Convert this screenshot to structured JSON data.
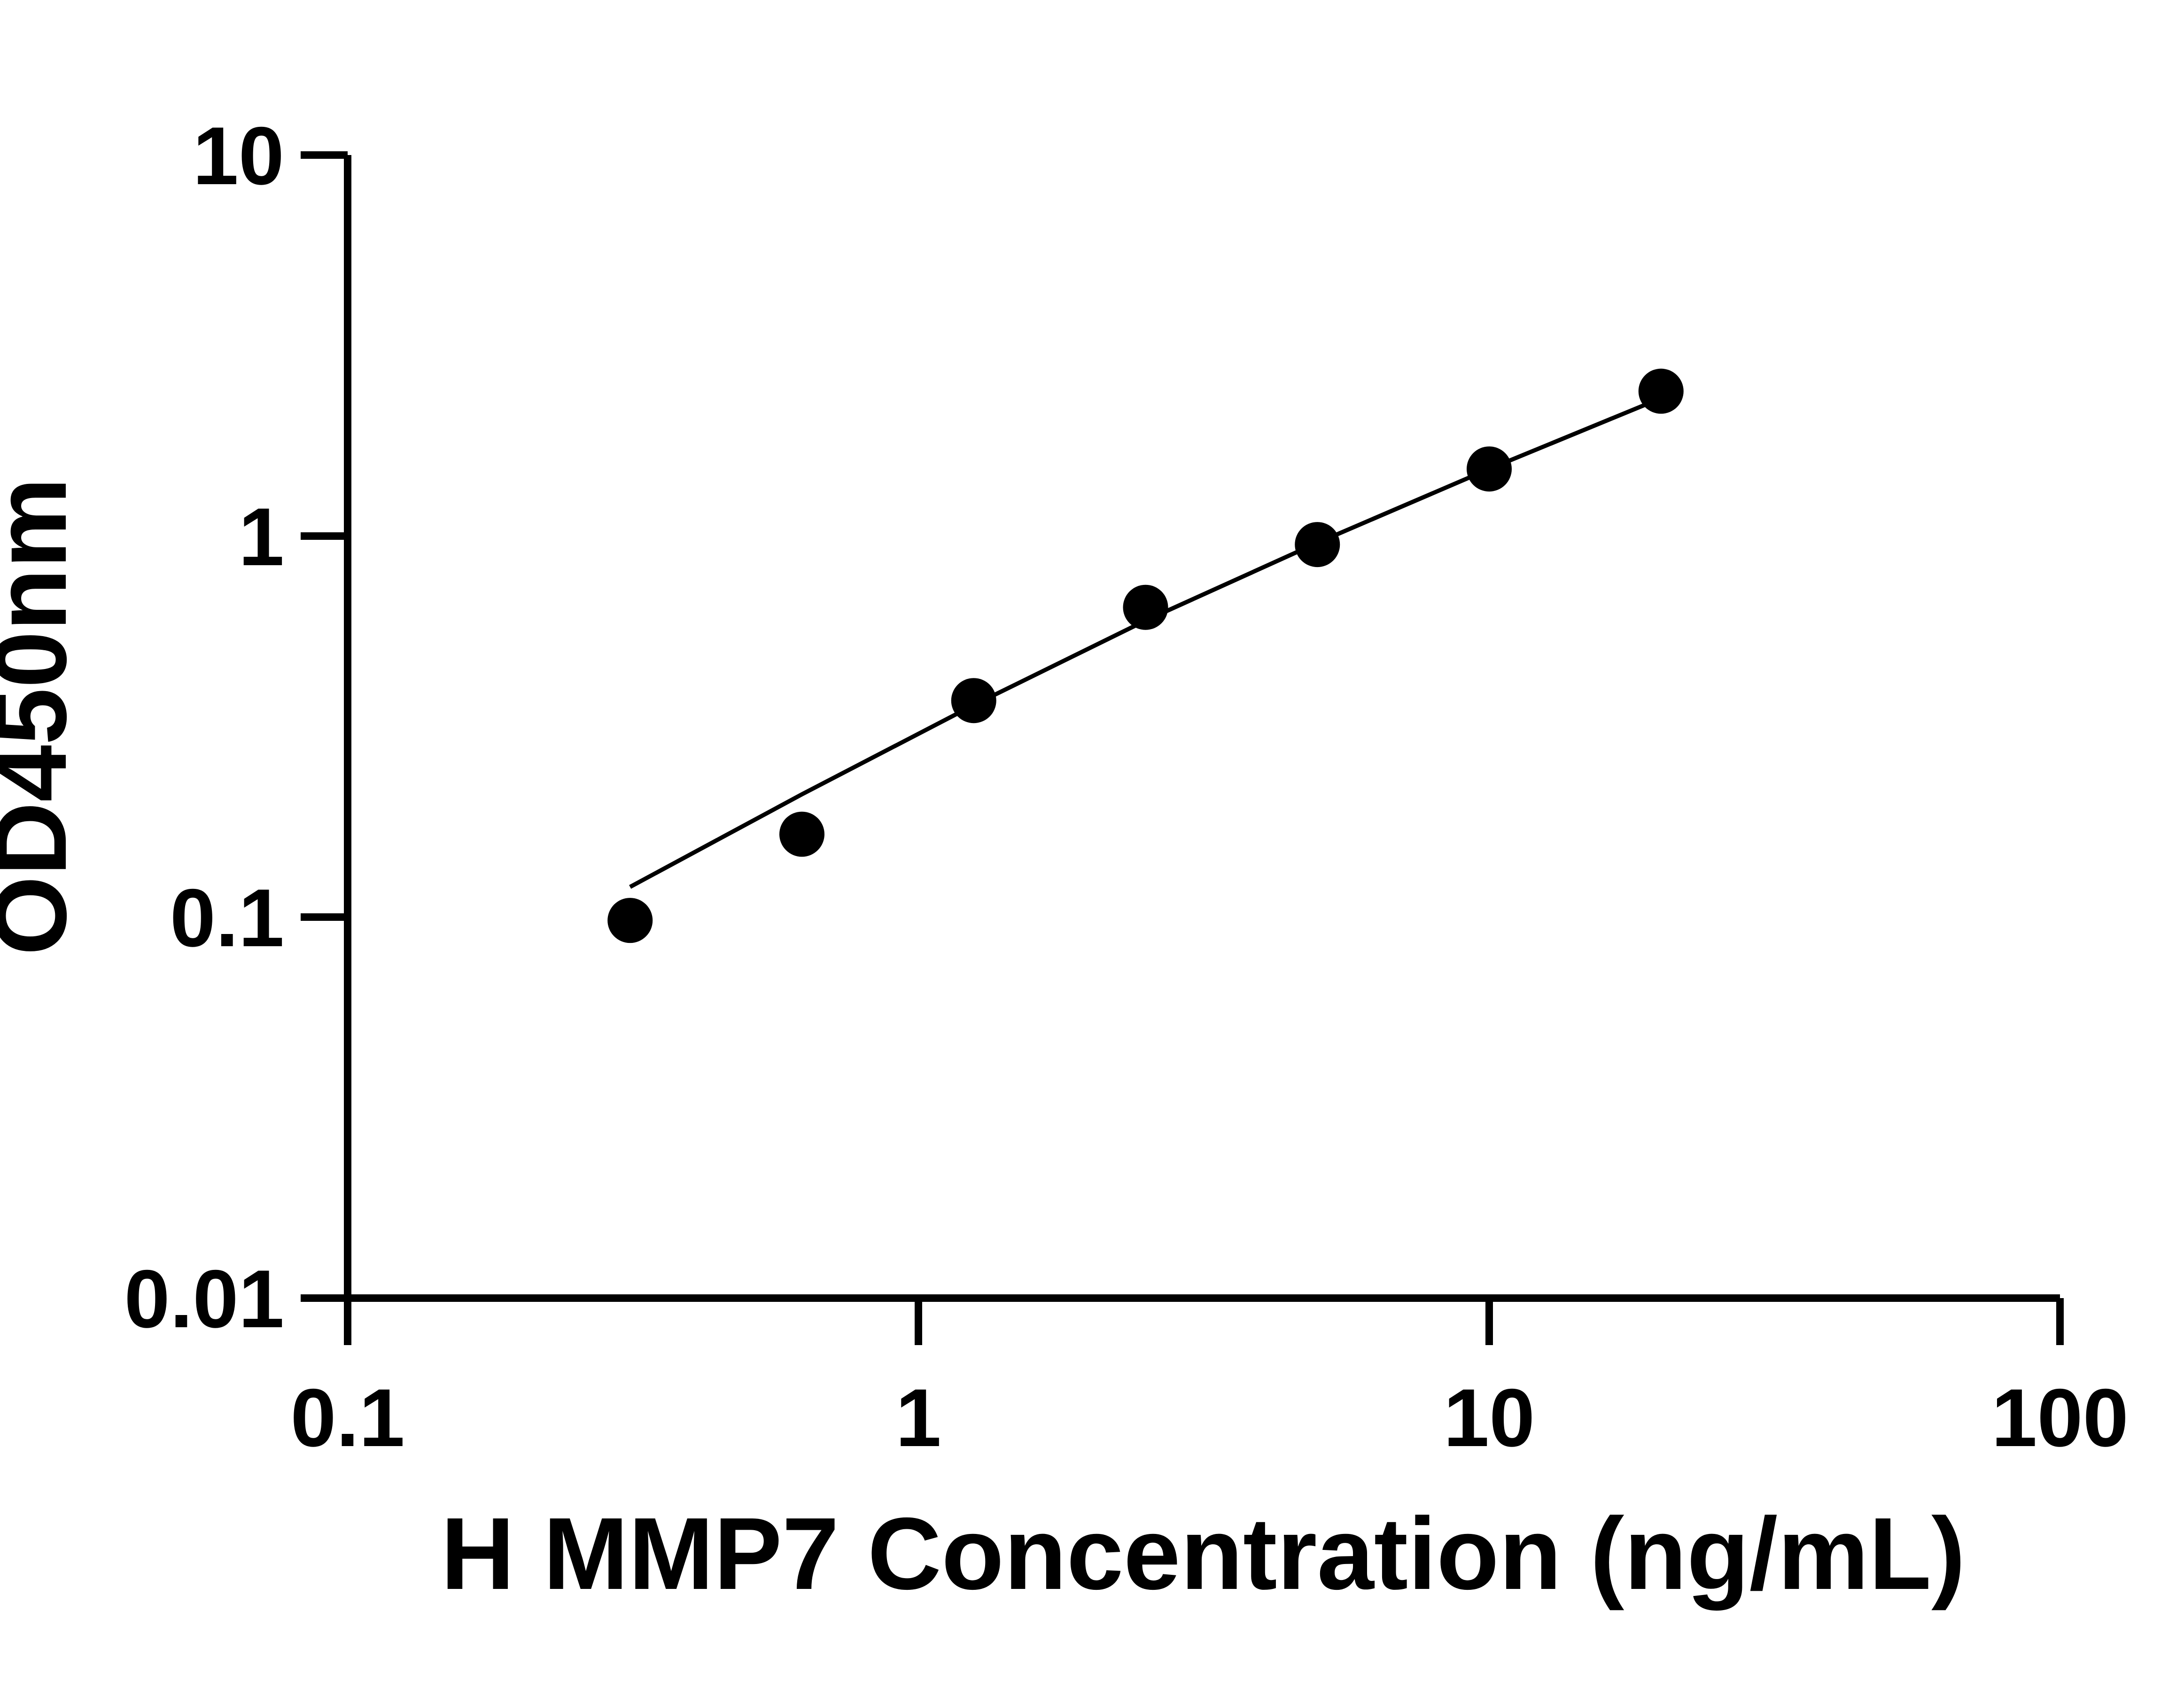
{
  "chart_data": {
    "type": "scatter",
    "title": "",
    "xlabel": "H MMP7 Concentration (ng/mL)",
    "ylabel": "OD450nm",
    "xscale": "log",
    "yscale": "log",
    "xlim": [
      0.1,
      100
    ],
    "ylim": [
      0.01,
      10
    ],
    "x_ticks": [
      0.1,
      1,
      10,
      100
    ],
    "x_tick_labels": [
      "0.1",
      "1",
      "10",
      "100"
    ],
    "y_ticks": [
      0.01,
      0.1,
      1,
      10
    ],
    "y_tick_labels": [
      "0.01",
      "0.1",
      "1",
      "10"
    ],
    "grid": false,
    "legend": "none",
    "colors": {
      "points": "#000000",
      "fit": "#000000",
      "axes": "#000000"
    },
    "points": [
      {
        "x": 0.3125,
        "y": 0.098
      },
      {
        "x": 0.625,
        "y": 0.165
      },
      {
        "x": 1.25,
        "y": 0.37
      },
      {
        "x": 2.5,
        "y": 0.65
      },
      {
        "x": 5,
        "y": 0.95
      },
      {
        "x": 10,
        "y": 1.5
      },
      {
        "x": 20,
        "y": 2.4
      }
    ],
    "fit_line": [
      {
        "x": 0.3125,
        "y": 0.12
      },
      {
        "x": 0.625,
        "y": 0.21
      },
      {
        "x": 1.25,
        "y": 0.36
      },
      {
        "x": 2.5,
        "y": 0.6
      },
      {
        "x": 5,
        "y": 0.96
      },
      {
        "x": 10,
        "y": 1.5
      },
      {
        "x": 20,
        "y": 2.3
      }
    ]
  }
}
